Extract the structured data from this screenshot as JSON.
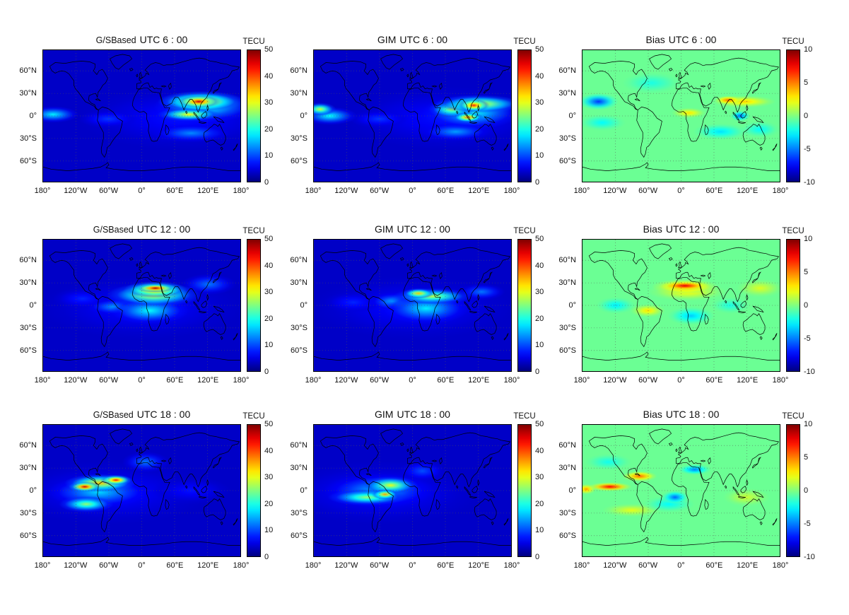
{
  "figure": {
    "background": "#ffffff",
    "unit_label": "TECU",
    "row_times": [
      "UTC 6 : 00",
      "UTC 12 : 00",
      "UTC 18 : 00"
    ],
    "col_models": [
      "G/SBased",
      "GIM",
      "Bias"
    ]
  },
  "axes": {
    "lon_ticks": [
      {
        "label": "180°",
        "lon": -180
      },
      {
        "label": "120°W",
        "lon": -120
      },
      {
        "label": "60°W",
        "lon": -60
      },
      {
        "label": "0°",
        "lon": 0
      },
      {
        "label": "60°E",
        "lon": 60
      },
      {
        "label": "120°E",
        "lon": 120
      },
      {
        "label": "180°",
        "lon": 180
      }
    ],
    "lat_ticks": [
      {
        "label": "60°N",
        "lat": 60
      },
      {
        "label": "30°N",
        "lat": 30
      },
      {
        "label": "0°",
        "lat": 0
      },
      {
        "label": "30°S",
        "lat": -30
      },
      {
        "label": "60°S",
        "lat": -60
      }
    ],
    "lat_range": [
      -87.5,
      87.5
    ],
    "lon_range": [
      -180,
      180
    ],
    "grid": "dotted"
  },
  "chart_data": {
    "type": "heatmap",
    "projection": "equirectangular-world-map",
    "colormap": "jet",
    "grid_layout": {
      "rows": 3,
      "cols": 3
    },
    "colorbars": {
      "tec": {
        "unit": "TECU",
        "min": 0,
        "max": 50,
        "ticks": [
          0,
          10,
          20,
          30,
          40,
          50
        ]
      },
      "bias": {
        "unit": "TECU",
        "min": -10,
        "max": 10,
        "ticks": [
          -10,
          -5,
          0,
          5,
          10
        ]
      }
    },
    "panels": [
      {
        "id": "gsbased-0600",
        "title_model": "G/SBased",
        "title_time": "UTC 6 : 00",
        "colorbar": "tec",
        "base_value": 3.5,
        "hotspots": [
          {
            "lon": 104,
            "lat": 19,
            "rlon": 40,
            "rlat": 9,
            "value": 46
          },
          {
            "lon": 108,
            "lat": 19,
            "rlon": 79,
            "rlat": 14,
            "value": 36
          },
          {
            "lon": 86,
            "lat": 2,
            "rlon": 58,
            "rlat": 9,
            "value": 31
          },
          {
            "lon": 115,
            "lat": 12,
            "rlon": 94,
            "rlat": 21,
            "value": 20
          },
          {
            "lon": -162,
            "lat": 2,
            "rlon": 47,
            "rlat": 11,
            "value": 18
          },
          {
            "lon": 90,
            "lat": -23,
            "rlon": 72,
            "rlat": 12,
            "value": 13
          },
          {
            "lon": -61,
            "lat": -4,
            "rlon": 54,
            "rlat": 12,
            "value": 9
          },
          {
            "lon": 70,
            "lat": -3,
            "rlon": 185,
            "rlat": 42,
            "value": 7
          }
        ]
      },
      {
        "id": "gim-0600",
        "title_model": "GIM",
        "title_time": "UTC 6 : 00",
        "colorbar": "tec",
        "base_value": 3.5,
        "hotspots": [
          {
            "lon": 112,
            "lat": 14,
            "rlon": 29,
            "rlat": 9,
            "value": 42
          },
          {
            "lon": 101,
            "lat": -2,
            "rlon": 29,
            "rlat": 7,
            "value": 38
          },
          {
            "lon": 122,
            "lat": 16,
            "rlon": 79,
            "rlat": 12,
            "value": 32
          },
          {
            "lon": 72,
            "lat": 9,
            "rlon": 43,
            "rlat": 12,
            "value": 28
          },
          {
            "lon": -169,
            "lat": 9,
            "rlon": 29,
            "rlat": 9,
            "value": 29
          },
          {
            "lon": -151,
            "lat": 0,
            "rlon": 50,
            "rlat": 12,
            "value": 19
          },
          {
            "lon": 108,
            "lat": 5,
            "rlon": 90,
            "rlat": 23,
            "value": 20
          },
          {
            "lon": 79,
            "lat": -21,
            "rlon": 65,
            "rlat": 12,
            "value": 14
          },
          {
            "lon": -61,
            "lat": -4,
            "rlon": 54,
            "rlat": 12,
            "value": 9
          },
          {
            "lon": 60,
            "lat": -3,
            "rlon": 185,
            "rlat": 42,
            "value": 7
          }
        ]
      },
      {
        "id": "bias-0600",
        "title_model": "Bias",
        "title_time": "UTC 6 : 00",
        "colorbar": "bias",
        "base_value": -0.4,
        "hotspots": [
          {
            "lon": -151,
            "lat": 19,
            "rlon": 36,
            "rlat": 11,
            "value": -6.5
          },
          {
            "lon": 86,
            "lat": 21,
            "rlon": 25,
            "rlat": 6,
            "value": 5.5
          },
          {
            "lon": 115,
            "lat": 19,
            "rlon": 58,
            "rlat": 8,
            "value": 3.5
          },
          {
            "lon": 108,
            "lat": 0,
            "rlon": 18,
            "rlat": 7,
            "value": -5.5
          },
          {
            "lon": 14,
            "lat": 4,
            "rlon": 32,
            "rlat": 7,
            "value": 3
          },
          {
            "lon": 72,
            "lat": -21,
            "rlon": 50,
            "rlat": 11,
            "value": -3
          },
          {
            "lon": -144,
            "lat": -9,
            "rlon": 43,
            "rlat": 11,
            "value": -2.5
          },
          {
            "lon": -54,
            "lat": 44,
            "rlon": 54,
            "rlat": 14,
            "value": -2
          },
          {
            "lon": 144,
            "lat": -18,
            "rlon": 36,
            "rlat": 11,
            "value": -2.5
          }
        ]
      },
      {
        "id": "gsbased-1200",
        "title_model": "G/SBased",
        "title_time": "UTC 12 : 00",
        "colorbar": "tec",
        "base_value": 3.5,
        "hotspots": [
          {
            "lon": 25,
            "lat": 23,
            "rlon": 36,
            "rlat": 6,
            "value": 48
          },
          {
            "lon": 25,
            "lat": 21,
            "rlon": 58,
            "rlat": 11,
            "value": 40
          },
          {
            "lon": 22,
            "lat": 14,
            "rlon": 86,
            "rlat": 16,
            "value": 31
          },
          {
            "lon": 14,
            "lat": -7,
            "rlon": 72,
            "rlat": 18,
            "value": 19
          },
          {
            "lon": -50,
            "lat": -2,
            "rlon": 50,
            "rlat": 11,
            "value": 14
          },
          {
            "lon": 122,
            "lat": 28,
            "rlon": 50,
            "rlat": 14,
            "value": 12
          },
          {
            "lon": -108,
            "lat": 9,
            "rlon": 54,
            "rlat": 14,
            "value": 8
          },
          {
            "lon": 0,
            "lat": -3,
            "rlon": 185,
            "rlat": 42,
            "value": 7
          }
        ]
      },
      {
        "id": "gim-1200",
        "title_model": "GIM",
        "title_time": "UTC 12 : 00",
        "colorbar": "tec",
        "base_value": 3.5,
        "hotspots": [
          {
            "lon": 11,
            "lat": 16,
            "rlon": 29,
            "rlat": 7,
            "value": 34
          },
          {
            "lon": 36,
            "lat": 12,
            "rlon": 72,
            "rlat": 11,
            "value": 28
          },
          {
            "lon": 25,
            "lat": -4,
            "rlon": 79,
            "rlat": 21,
            "value": 18
          },
          {
            "lon": -36,
            "lat": 5,
            "rlon": 43,
            "rlat": 12,
            "value": 15
          },
          {
            "lon": 126,
            "lat": 18,
            "rlon": 43,
            "rlat": 11,
            "value": 12
          },
          {
            "lon": -108,
            "lat": 4,
            "rlon": 54,
            "rlat": 14,
            "value": 8
          },
          {
            "lon": 0,
            "lat": -3,
            "rlon": 185,
            "rlat": 42,
            "value": 7
          }
        ]
      },
      {
        "id": "bias-1200",
        "title_model": "Bias",
        "title_time": "UTC 12 : 00",
        "colorbar": "bias",
        "base_value": -0.4,
        "hotspots": [
          {
            "lon": 7,
            "lat": 26,
            "rlon": 43,
            "rlat": 6,
            "value": 8
          },
          {
            "lon": 7,
            "lat": 25,
            "rlon": 61,
            "rlat": 10,
            "value": 5
          },
          {
            "lon": 11,
            "lat": 18,
            "rlon": 72,
            "rlat": 12,
            "value": 2.5
          },
          {
            "lon": -61,
            "lat": -7,
            "rlon": 32,
            "rlat": 9,
            "value": 3
          },
          {
            "lon": 18,
            "lat": -14,
            "rlon": 43,
            "rlat": 12,
            "value": -3.5
          },
          {
            "lon": -119,
            "lat": 0,
            "rlon": 36,
            "rlat": 11,
            "value": -2.8
          },
          {
            "lon": 144,
            "lat": 23,
            "rlon": 43,
            "rlat": 12,
            "value": 1.8
          },
          {
            "lon": 90,
            "lat": 0,
            "rlon": 36,
            "rlat": 11,
            "value": -2
          }
        ]
      },
      {
        "id": "gsbased-1800",
        "title_model": "G/SBased",
        "title_time": "UTC 18 : 00",
        "colorbar": "tec",
        "base_value": 3.5,
        "hotspots": [
          {
            "lon": -104,
            "lat": 5,
            "rlon": 29,
            "rlat": 7,
            "value": 46
          },
          {
            "lon": -47,
            "lat": 14,
            "rlon": 29,
            "rlat": 7,
            "value": 43
          },
          {
            "lon": -76,
            "lat": 10,
            "rlon": 65,
            "rlat": 12,
            "value": 34
          },
          {
            "lon": -101,
            "lat": -18,
            "rlon": 50,
            "rlat": 11,
            "value": 26
          },
          {
            "lon": -79,
            "lat": -2,
            "rlon": 94,
            "rlat": 21,
            "value": 17
          },
          {
            "lon": 7,
            "lat": 38,
            "rlon": 43,
            "rlat": 14,
            "value": 12
          },
          {
            "lon": 90,
            "lat": 0,
            "rlon": 72,
            "rlat": 18,
            "value": 7
          },
          {
            "lon": -60,
            "lat": -3,
            "rlon": 185,
            "rlat": 42,
            "value": 7
          }
        ]
      },
      {
        "id": "gim-1800",
        "title_model": "GIM",
        "title_time": "UTC 18 : 00",
        "colorbar": "tec",
        "base_value": 3.5,
        "hotspots": [
          {
            "lon": -50,
            "lat": -5,
            "rlon": 25,
            "rlat": 7,
            "value": 36
          },
          {
            "lon": -40,
            "lat": 7,
            "rlon": 50,
            "rlat": 12,
            "value": 30
          },
          {
            "lon": -83,
            "lat": -9,
            "rlon": 72,
            "rlat": 11,
            "value": 26
          },
          {
            "lon": -61,
            "lat": 0,
            "rlon": 101,
            "rlat": 23,
            "value": 16
          },
          {
            "lon": 18,
            "lat": 26,
            "rlon": 43,
            "rlat": 14,
            "value": 10
          },
          {
            "lon": -60,
            "lat": -3,
            "rlon": 185,
            "rlat": 42,
            "value": 7
          }
        ]
      },
      {
        "id": "bias-1800",
        "title_model": "Bias",
        "title_time": "UTC 18 : 00",
        "colorbar": "bias",
        "base_value": -0.4,
        "hotspots": [
          {
            "lon": -130,
            "lat": 5,
            "rlon": 40,
            "rlat": 6,
            "value": 7.5
          },
          {
            "lon": -76,
            "lat": 19,
            "rlon": 32,
            "rlat": 7,
            "value": 5.5
          },
          {
            "lon": -173,
            "lat": 2,
            "rlon": 18,
            "rlat": 7,
            "value": 4.5
          },
          {
            "lon": -11,
            "lat": -9,
            "rlon": 25,
            "rlat": 9,
            "value": -5.5
          },
          {
            "lon": 25,
            "lat": 28,
            "rlon": 29,
            "rlat": 7,
            "value": -5
          },
          {
            "lon": -22,
            "lat": -18,
            "rlon": 47,
            "rlat": 11,
            "value": -2.5
          },
          {
            "lon": -133,
            "lat": 38,
            "rlon": 43,
            "rlat": 11,
            "value": -2.2
          },
          {
            "lon": -90,
            "lat": -26,
            "rlon": 54,
            "rlat": 9,
            "value": 2
          },
          {
            "lon": 119,
            "lat": -9,
            "rlon": 43,
            "rlat": 12,
            "value": 1.5
          }
        ]
      }
    ]
  }
}
